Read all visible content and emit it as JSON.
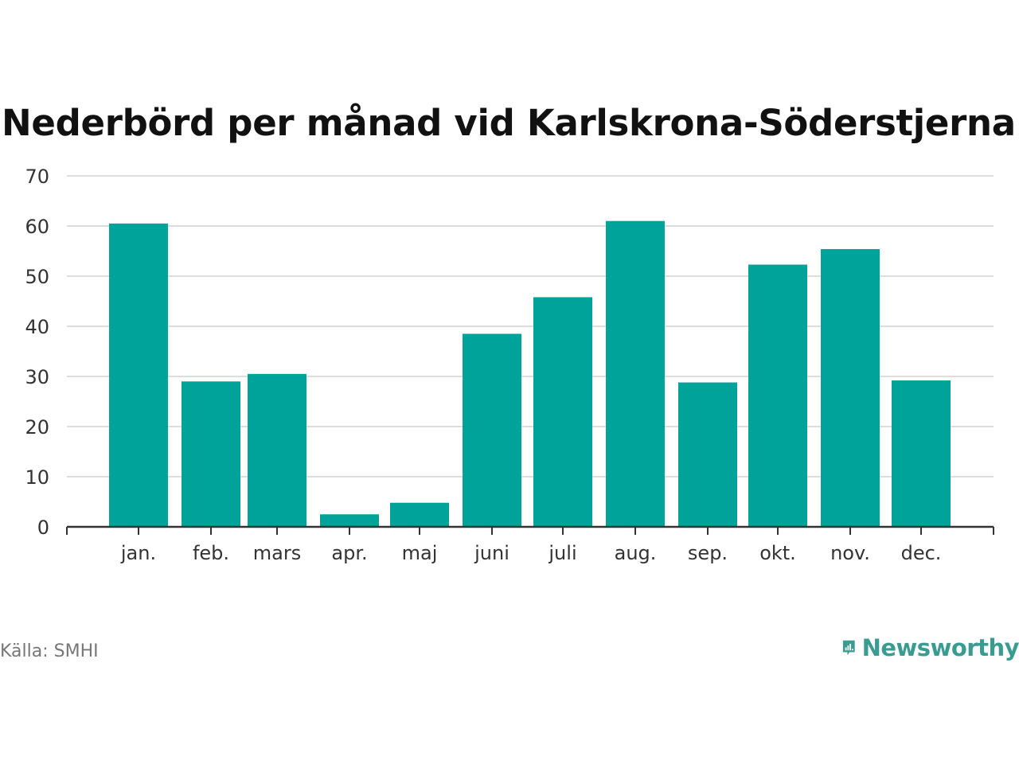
{
  "title": "Nederbörd per månad vid Karlskrona-Söderstjerna",
  "source": "Källa: SMHI",
  "brand": {
    "name": "Newsworthy",
    "icon": "newsworthy-logo-icon",
    "color": "#3a9c91"
  },
  "chart_data": {
    "type": "bar",
    "title": "Nederbörd per månad vid Karlskrona-Söderstjerna",
    "xlabel": "",
    "ylabel": "",
    "categories": [
      "jan.",
      "feb.",
      "mars",
      "apr.",
      "maj",
      "juni",
      "juli",
      "aug.",
      "sep.",
      "okt.",
      "nov.",
      "dec."
    ],
    "values": [
      60.5,
      29,
      30.5,
      2.5,
      4.8,
      38.5,
      45.8,
      61,
      28.8,
      52.3,
      55.4,
      29.2
    ],
    "ylim": [
      0,
      70
    ],
    "yticks": [
      0,
      10,
      20,
      30,
      40,
      50,
      60,
      70
    ],
    "grid": true,
    "legend": "none",
    "bar_color": "#00a39a"
  }
}
